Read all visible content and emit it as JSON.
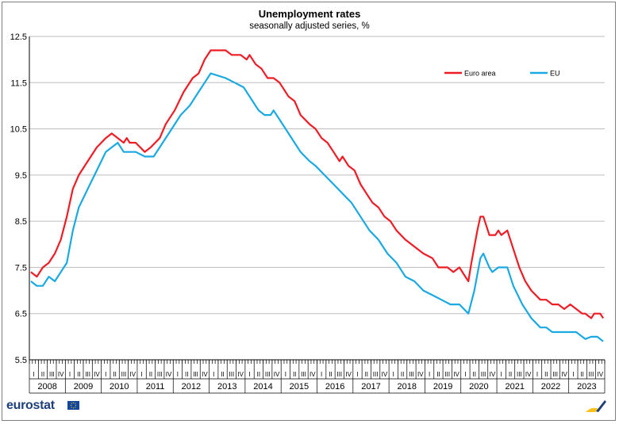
{
  "header": {
    "title": "Unemployment rates",
    "subtitle": "seasonally adjusted series, %"
  },
  "footer": {
    "brand": "eurostat",
    "brand_colors": {
      "text": "#1f3f78",
      "flag": "#1446a0",
      "stars": "#ffdd00"
    },
    "corner_icon": "eurostat-swoosh-icon"
  },
  "chart_data": {
    "type": "line",
    "ylim": [
      5.5,
      12.5
    ],
    "yticks": [
      "12.5",
      "11.5",
      "10.5",
      "9.5",
      "8.5",
      "7.5",
      "6.5",
      "5.5"
    ],
    "grid": true,
    "legend_position": "top-right",
    "x_start": "2008-01",
    "x_end": "2023-12",
    "x_frequency": "monthly",
    "quarters": [
      "I",
      "II",
      "III",
      "IV"
    ],
    "years": [
      "2008",
      "2009",
      "2010",
      "2011",
      "2012",
      "2013",
      "2014",
      "2015",
      "2016",
      "2017",
      "2018",
      "2019",
      "2020",
      "2021",
      "2022",
      "2023"
    ],
    "series": [
      {
        "name": "Euro area",
        "color": "#ee1c25",
        "points": [
          [
            "2008-01",
            7.4
          ],
          [
            "2008-03",
            7.3
          ],
          [
            "2008-05",
            7.5
          ],
          [
            "2008-07",
            7.6
          ],
          [
            "2008-09",
            7.8
          ],
          [
            "2008-11",
            8.1
          ],
          [
            "2009-01",
            8.6
          ],
          [
            "2009-03",
            9.2
          ],
          [
            "2009-05",
            9.5
          ],
          [
            "2009-08",
            9.8
          ],
          [
            "2009-11",
            10.1
          ],
          [
            "2010-02",
            10.3
          ],
          [
            "2010-04",
            10.4
          ],
          [
            "2010-06",
            10.3
          ],
          [
            "2010-08",
            10.2
          ],
          [
            "2010-09",
            10.3
          ],
          [
            "2010-10",
            10.2
          ],
          [
            "2010-12",
            10.2
          ],
          [
            "2011-03",
            10.0
          ],
          [
            "2011-05",
            10.1
          ],
          [
            "2011-08",
            10.3
          ],
          [
            "2011-10",
            10.6
          ],
          [
            "2012-01",
            10.9
          ],
          [
            "2012-04",
            11.3
          ],
          [
            "2012-07",
            11.6
          ],
          [
            "2012-09",
            11.7
          ],
          [
            "2012-11",
            12.0
          ],
          [
            "2013-01",
            12.2
          ],
          [
            "2013-06",
            12.2
          ],
          [
            "2013-08",
            12.1
          ],
          [
            "2013-11",
            12.1
          ],
          [
            "2014-01",
            12.0
          ],
          [
            "2014-02",
            12.1
          ],
          [
            "2014-04",
            11.9
          ],
          [
            "2014-06",
            11.8
          ],
          [
            "2014-08",
            11.6
          ],
          [
            "2014-10",
            11.6
          ],
          [
            "2014-12",
            11.5
          ],
          [
            "2015-03",
            11.2
          ],
          [
            "2015-05",
            11.1
          ],
          [
            "2015-07",
            10.8
          ],
          [
            "2015-10",
            10.6
          ],
          [
            "2015-12",
            10.5
          ],
          [
            "2016-02",
            10.3
          ],
          [
            "2016-04",
            10.2
          ],
          [
            "2016-06",
            10.0
          ],
          [
            "2016-08",
            9.8
          ],
          [
            "2016-09",
            9.9
          ],
          [
            "2016-11",
            9.7
          ],
          [
            "2017-01",
            9.6
          ],
          [
            "2017-03",
            9.3
          ],
          [
            "2017-05",
            9.1
          ],
          [
            "2017-07",
            8.9
          ],
          [
            "2017-09",
            8.8
          ],
          [
            "2017-11",
            8.6
          ],
          [
            "2018-01",
            8.5
          ],
          [
            "2018-03",
            8.3
          ],
          [
            "2018-06",
            8.1
          ],
          [
            "2018-08",
            8.0
          ],
          [
            "2018-10",
            7.9
          ],
          [
            "2018-12",
            7.8
          ],
          [
            "2019-03",
            7.7
          ],
          [
            "2019-05",
            7.5
          ],
          [
            "2019-08",
            7.5
          ],
          [
            "2019-10",
            7.4
          ],
          [
            "2019-12",
            7.5
          ],
          [
            "2020-02",
            7.3
          ],
          [
            "2020-03",
            7.2
          ],
          [
            "2020-04",
            7.6
          ],
          [
            "2020-06",
            8.3
          ],
          [
            "2020-07",
            8.6
          ],
          [
            "2020-08",
            8.6
          ],
          [
            "2020-10",
            8.2
          ],
          [
            "2020-12",
            8.2
          ],
          [
            "2021-01",
            8.3
          ],
          [
            "2021-02",
            8.2
          ],
          [
            "2021-04",
            8.3
          ],
          [
            "2021-06",
            7.9
          ],
          [
            "2021-08",
            7.5
          ],
          [
            "2021-10",
            7.2
          ],
          [
            "2021-12",
            7.0
          ],
          [
            "2022-03",
            6.8
          ],
          [
            "2022-05",
            6.8
          ],
          [
            "2022-07",
            6.7
          ],
          [
            "2022-09",
            6.7
          ],
          [
            "2022-11",
            6.6
          ],
          [
            "2023-01",
            6.7
          ],
          [
            "2023-03",
            6.6
          ],
          [
            "2023-05",
            6.5
          ],
          [
            "2023-06",
            6.5
          ],
          [
            "2023-08",
            6.4
          ],
          [
            "2023-09",
            6.5
          ],
          [
            "2023-11",
            6.5
          ],
          [
            "2023-12",
            6.4
          ]
        ]
      },
      {
        "name": "EU",
        "color": "#1ba9e2",
        "points": [
          [
            "2008-01",
            7.2
          ],
          [
            "2008-03",
            7.1
          ],
          [
            "2008-05",
            7.1
          ],
          [
            "2008-07",
            7.3
          ],
          [
            "2008-09",
            7.2
          ],
          [
            "2008-11",
            7.4
          ],
          [
            "2009-01",
            7.6
          ],
          [
            "2009-03",
            8.3
          ],
          [
            "2009-05",
            8.8
          ],
          [
            "2009-08",
            9.2
          ],
          [
            "2009-11",
            9.6
          ],
          [
            "2010-02",
            10.0
          ],
          [
            "2010-04",
            10.1
          ],
          [
            "2010-06",
            10.2
          ],
          [
            "2010-08",
            10.0
          ],
          [
            "2010-10",
            10.0
          ],
          [
            "2010-12",
            10.0
          ],
          [
            "2011-03",
            9.9
          ],
          [
            "2011-06",
            9.9
          ],
          [
            "2011-09",
            10.2
          ],
          [
            "2011-12",
            10.5
          ],
          [
            "2012-03",
            10.8
          ],
          [
            "2012-06",
            11.0
          ],
          [
            "2012-09",
            11.3
          ],
          [
            "2012-11",
            11.5
          ],
          [
            "2013-01",
            11.7
          ],
          [
            "2013-06",
            11.6
          ],
          [
            "2013-09",
            11.5
          ],
          [
            "2013-12",
            11.4
          ],
          [
            "2014-03",
            11.1
          ],
          [
            "2014-05",
            10.9
          ],
          [
            "2014-07",
            10.8
          ],
          [
            "2014-09",
            10.8
          ],
          [
            "2014-10",
            10.9
          ],
          [
            "2014-12",
            10.7
          ],
          [
            "2015-03",
            10.4
          ],
          [
            "2015-05",
            10.2
          ],
          [
            "2015-07",
            10.0
          ],
          [
            "2015-10",
            9.8
          ],
          [
            "2015-12",
            9.7
          ],
          [
            "2016-03",
            9.5
          ],
          [
            "2016-06",
            9.3
          ],
          [
            "2016-09",
            9.1
          ],
          [
            "2016-12",
            8.9
          ],
          [
            "2017-03",
            8.6
          ],
          [
            "2017-06",
            8.3
          ],
          [
            "2017-09",
            8.1
          ],
          [
            "2017-12",
            7.8
          ],
          [
            "2018-03",
            7.6
          ],
          [
            "2018-06",
            7.3
          ],
          [
            "2018-09",
            7.2
          ],
          [
            "2018-12",
            7.0
          ],
          [
            "2019-03",
            6.9
          ],
          [
            "2019-06",
            6.8
          ],
          [
            "2019-09",
            6.7
          ],
          [
            "2019-12",
            6.7
          ],
          [
            "2020-03",
            6.5
          ],
          [
            "2020-05",
            7.0
          ],
          [
            "2020-07",
            7.7
          ],
          [
            "2020-08",
            7.8
          ],
          [
            "2020-10",
            7.5
          ],
          [
            "2020-11",
            7.4
          ],
          [
            "2021-01",
            7.5
          ],
          [
            "2021-04",
            7.5
          ],
          [
            "2021-06",
            7.1
          ],
          [
            "2021-09",
            6.7
          ],
          [
            "2021-12",
            6.4
          ],
          [
            "2022-03",
            6.2
          ],
          [
            "2022-05",
            6.2
          ],
          [
            "2022-07",
            6.1
          ],
          [
            "2022-10",
            6.1
          ],
          [
            "2023-01",
            6.1
          ],
          [
            "2023-03",
            6.1
          ],
          [
            "2023-05",
            6.0
          ],
          [
            "2023-06",
            5.95
          ],
          [
            "2023-08",
            6.0
          ],
          [
            "2023-10",
            6.0
          ],
          [
            "2023-12",
            5.9
          ]
        ]
      }
    ]
  }
}
